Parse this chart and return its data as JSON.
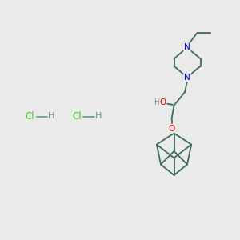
{
  "bg_color": "#EAEAEA",
  "bond_color": "#3d6b5e",
  "N_color": "#0000EE",
  "O_color": "#EE0000",
  "H_color": "#6a9e93",
  "Cl_color": "#44CC22",
  "line_width": 1.3,
  "figsize": [
    3.0,
    3.0
  ],
  "dpi": 100,
  "xlim": [
    0,
    10
  ],
  "ylim": [
    0,
    10
  ]
}
